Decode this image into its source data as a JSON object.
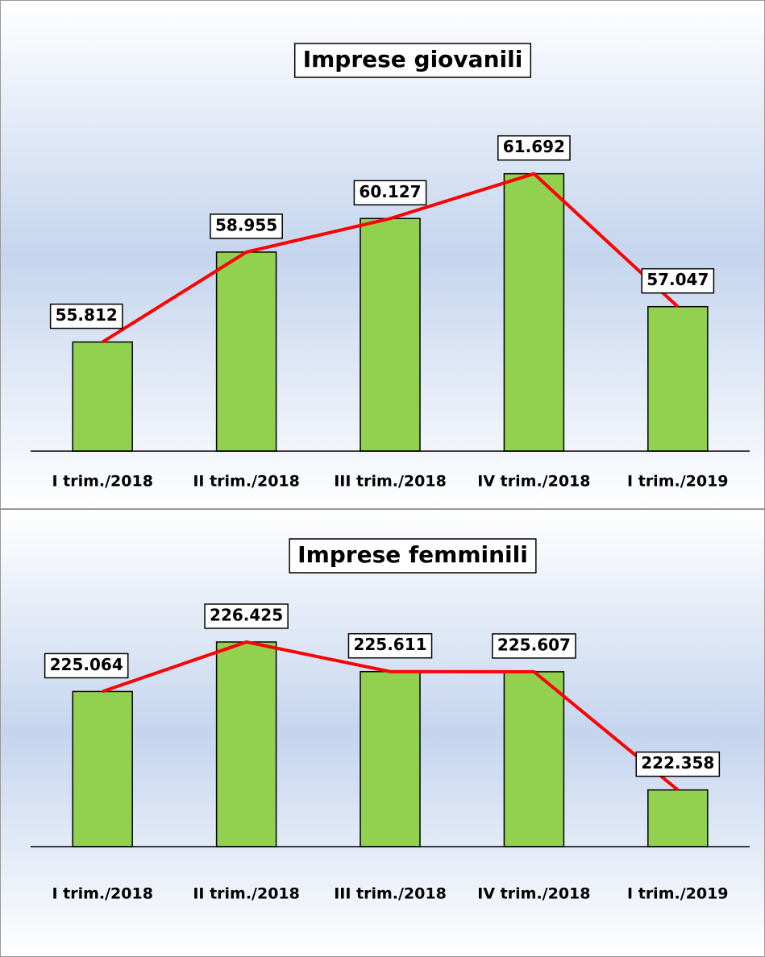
{
  "chart_data": [
    {
      "type": "bar",
      "title": "Imprese giovanili",
      "categories": [
        "I trim./2018",
        "II trim./2018",
        "III trim./2018",
        "IV trim./2018",
        "I trim./2019"
      ],
      "values": [
        55812,
        58955,
        60127,
        61692,
        57047
      ],
      "value_labels": [
        "55.812",
        "58.955",
        "60.127",
        "61.692",
        "57.047"
      ],
      "color": "#92d050",
      "line_color": "#ff0000",
      "ylim": [
        52000,
        67200
      ]
    },
    {
      "type": "bar",
      "title": "Imprese femminili",
      "categories": [
        "I trim./2018",
        "II trim./2018",
        "III trim./2018",
        "IV trim./2018",
        "I trim./2019"
      ],
      "values": [
        225064,
        226425,
        225611,
        225607,
        222358
      ],
      "value_labels": [
        "225.064",
        "226.425",
        "225.611",
        "225.607",
        "222.358"
      ],
      "color": "#92d050",
      "line_color": "#ff0000",
      "ylim": [
        220800,
        229900
      ]
    }
  ]
}
